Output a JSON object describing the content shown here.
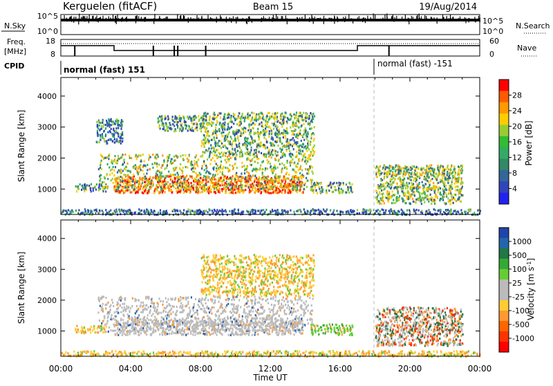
{
  "header": {
    "station": "Kerguelen (fitACF)",
    "beam": "Beam 15",
    "date": "19/Aug/2014"
  },
  "strips": {
    "nsky_label": "N.Sky",
    "nsky_ticks": [
      "10^5",
      "10^0"
    ],
    "nsearch_label": "N.Search",
    "freq_label_1": "Freq.",
    "freq_label_2": "[MHz]",
    "freq_ticks": [
      "18",
      "8"
    ],
    "nave_label": "Nave",
    "nave_ticks": [
      "60",
      "0"
    ],
    "cpid_label": "CPID",
    "cpid_text_1": "normal (fast) 151",
    "cpid_text_2": "normal (fast) -151"
  },
  "chart_data": [
    {
      "type": "heatmap",
      "name": "power",
      "ylabel": "Slant Range [km]",
      "ylim": [
        180,
        4600
      ],
      "yticks": [
        1000,
        2000,
        3000,
        4000
      ],
      "xlim_hours": [
        0,
        24
      ],
      "colorbar": {
        "label": "Power [dB]",
        "ticks": [
          "28",
          "24",
          "20",
          "16",
          "12",
          "8",
          "4"
        ],
        "colors": [
          "#ff0000",
          "#ff5a00",
          "#ff9900",
          "#ffcc00",
          "#99cc33",
          "#33bb33",
          "#33aa66",
          "#338866",
          "#336699",
          "#3344bb",
          "#2222ee"
        ]
      },
      "regions": [
        {
          "t": [
            3.0,
            13.9
          ],
          "r": [
            900,
            1450
          ],
          "level": 0.8
        },
        {
          "t": [
            2.1,
            14.4
          ],
          "r": [
            1000,
            2150
          ],
          "level": 0.45
        },
        {
          "t": [
            14.3,
            16.7
          ],
          "r": [
            900,
            1250
          ],
          "level": 0.35
        },
        {
          "t": [
            0.8,
            2.6
          ],
          "r": [
            950,
            1200
          ],
          "level": 0.3
        },
        {
          "t": [
            8.0,
            14.5
          ],
          "r": [
            2150,
            3500
          ],
          "level": 0.35
        },
        {
          "t": [
            5.5,
            8.3
          ],
          "r": [
            2900,
            3400
          ],
          "level": 0.3
        },
        {
          "t": [
            18.0,
            23.0
          ],
          "r": [
            550,
            1800
          ],
          "level": 0.4
        },
        {
          "t": [
            2.0,
            3.5
          ],
          "r": [
            2500,
            3300
          ],
          "level": 0.2
        },
        {
          "t": [
            0.0,
            24.0
          ],
          "r": [
            200,
            380
          ],
          "level": 0.15
        }
      ]
    },
    {
      "type": "heatmap",
      "name": "velocity",
      "ylabel": "Slant Range [km]",
      "xlabel": "Time UT",
      "ylim": [
        180,
        4600
      ],
      "yticks": [
        1000,
        2000,
        3000,
        4000
      ],
      "xlim_hours": [
        0,
        24
      ],
      "xticks": [
        "00:00",
        "04:00",
        "08:00",
        "12:00",
        "16:00",
        "20:00",
        "00:00"
      ],
      "colorbar": {
        "label": "Velocity [m s^-1]",
        "ticks": [
          "1000",
          "500",
          "100",
          "25",
          "-25",
          "-100",
          "-500",
          "-1000"
        ],
        "colors": [
          "#2244aa",
          "#2266aa",
          "#227744",
          "#33aa33",
          "#66cc33",
          "#bbbbbb",
          "#bbbbbb",
          "#ffcc33",
          "#ff9933",
          "#ff6600",
          "#ff3300",
          "#ff0000"
        ]
      },
      "regions": [
        {
          "t": [
            3.0,
            13.9
          ],
          "r": [
            900,
            1450
          ],
          "category": "ground"
        },
        {
          "t": [
            2.1,
            14.4
          ],
          "r": [
            1000,
            2150
          ],
          "category": "ground"
        },
        {
          "t": [
            14.3,
            16.7
          ],
          "r": [
            900,
            1250
          ],
          "category": "positive"
        },
        {
          "t": [
            0.8,
            2.6
          ],
          "r": [
            950,
            1200
          ],
          "category": "negative"
        },
        {
          "t": [
            8.0,
            14.5
          ],
          "r": [
            2150,
            3500
          ],
          "category": "negative"
        },
        {
          "t": [
            18.0,
            23.0
          ],
          "r": [
            550,
            1800
          ],
          "category": "mixed"
        },
        {
          "t": [
            0.0,
            24.0
          ],
          "r": [
            200,
            380
          ],
          "category": "negative"
        }
      ]
    }
  ],
  "colors": {
    "ground_scatter": "#bbbbbb",
    "strip_line": "#000000"
  }
}
